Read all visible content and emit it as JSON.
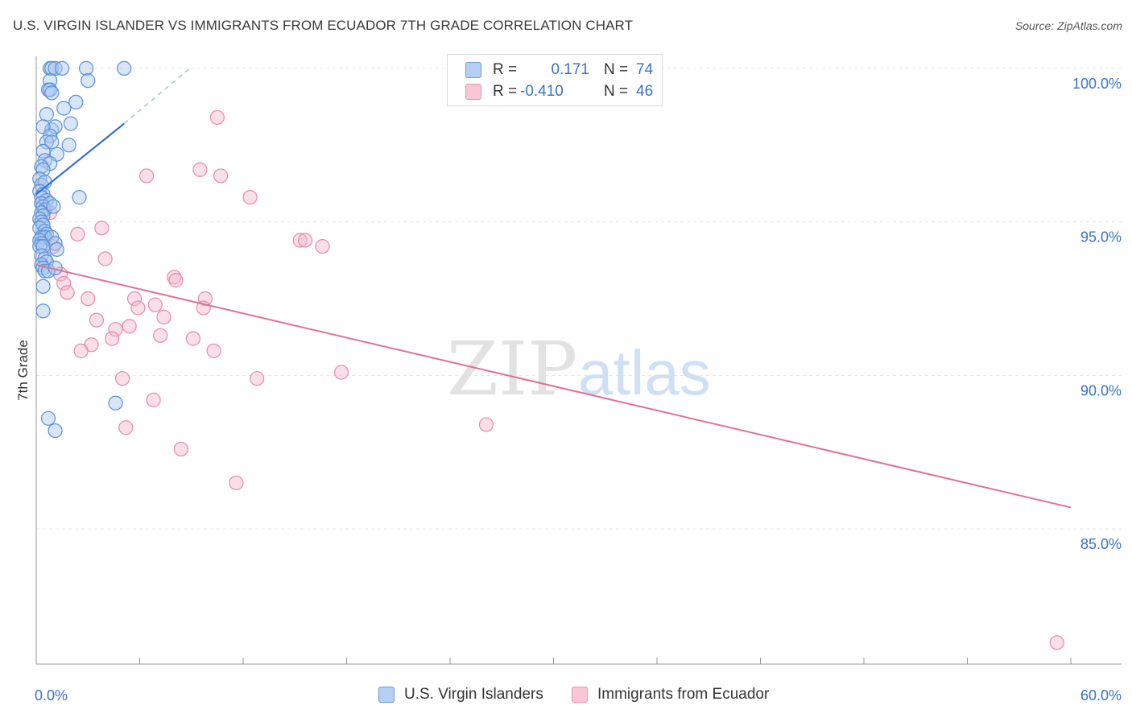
{
  "title": "U.S. VIRGIN ISLANDER VS IMMIGRANTS FROM ECUADOR 7TH GRADE CORRELATION CHART",
  "source": "Source: ZipAtlas.com",
  "watermark": {
    "zip": "ZIP",
    "atlas": "atlas"
  },
  "colors": {
    "blue_fill": "#a8c8f0",
    "blue_stroke": "#5b8fd6",
    "blue_line": "#2f6fd0",
    "pink_fill": "#f5b8cc",
    "pink_stroke": "#e68aa8",
    "pink_line": "#e0709a",
    "tick_text": "#3b73c4",
    "grid": "#e4e4e4"
  },
  "legend": {
    "rows": [
      {
        "r_label": "R =",
        "r_value": "0.171",
        "n_label": "N =",
        "n_value": "74"
      },
      {
        "r_label": "R =",
        "r_value": "-0.410",
        "n_label": "N =",
        "n_value": "46"
      }
    ]
  },
  "bottom_legend": {
    "series1": "U.S. Virgin Islanders",
    "series2": "Immigrants from Ecuador"
  },
  "chart_data": {
    "type": "scatter",
    "title": "U.S. VIRGIN ISLANDER VS IMMIGRANTS FROM ECUADOR 7TH GRADE CORRELATION CHART",
    "xlabel": "",
    "ylabel": "7th Grade",
    "xlim": [
      0,
      60
    ],
    "ylim": [
      80.6,
      100.6
    ],
    "x_tick_labels": [
      {
        "value": 0,
        "label": "0.0%"
      },
      {
        "value": 60,
        "label": "60.0%"
      }
    ],
    "x_minor_ticks": [
      6,
      12,
      18,
      24,
      30,
      36,
      42,
      48,
      54,
      60
    ],
    "y_ticks": [
      {
        "value": 100,
        "label": "100.0%"
      },
      {
        "value": 95,
        "label": "95.0%"
      },
      {
        "value": 90,
        "label": "90.0%"
      },
      {
        "value": 85,
        "label": "85.0%"
      }
    ],
    "series": [
      {
        "name": "U.S. Virgin Islanders",
        "color": "#a8c8f0",
        "trend": {
          "x": [
            0,
            5.1
          ],
          "y": [
            95.9,
            98.2
          ]
        },
        "trend_dashed": {
          "x": [
            5.1,
            8.9
          ],
          "y": [
            98.2,
            100.0
          ]
        },
        "points": [
          [
            0.8,
            100.0
          ],
          [
            0.9,
            100.0
          ],
          [
            1.1,
            100.0
          ],
          [
            1.5,
            100.0
          ],
          [
            2.9,
            100.0
          ],
          [
            5.1,
            100.0
          ],
          [
            0.8,
            99.6
          ],
          [
            3.0,
            99.6
          ],
          [
            0.7,
            99.3
          ],
          [
            0.8,
            99.3
          ],
          [
            0.9,
            99.2
          ],
          [
            2.3,
            98.9
          ],
          [
            1.6,
            98.7
          ],
          [
            0.6,
            98.5
          ],
          [
            2.0,
            98.2
          ],
          [
            0.9,
            98.0
          ],
          [
            1.1,
            98.1
          ],
          [
            0.4,
            98.1
          ],
          [
            0.8,
            97.8
          ],
          [
            0.6,
            97.6
          ],
          [
            0.9,
            97.6
          ],
          [
            1.9,
            97.5
          ],
          [
            0.4,
            97.3
          ],
          [
            1.2,
            97.2
          ],
          [
            0.5,
            97.0
          ],
          [
            0.8,
            96.9
          ],
          [
            0.3,
            96.8
          ],
          [
            0.4,
            96.7
          ],
          [
            0.2,
            96.4
          ],
          [
            0.3,
            96.2
          ],
          [
            0.5,
            96.3
          ],
          [
            0.2,
            96.0
          ],
          [
            0.4,
            95.9
          ],
          [
            0.3,
            95.8
          ],
          [
            0.6,
            95.7
          ],
          [
            2.5,
            95.8
          ],
          [
            0.3,
            95.6
          ],
          [
            0.4,
            95.5
          ],
          [
            0.5,
            95.4
          ],
          [
            0.8,
            95.6
          ],
          [
            1.0,
            95.5
          ],
          [
            0.3,
            95.3
          ],
          [
            0.4,
            95.2
          ],
          [
            0.2,
            95.1
          ],
          [
            0.3,
            95.0
          ],
          [
            0.4,
            94.9
          ],
          [
            0.2,
            94.8
          ],
          [
            0.5,
            94.7
          ],
          [
            0.6,
            94.6
          ],
          [
            0.3,
            94.5
          ],
          [
            0.5,
            94.5
          ],
          [
            0.9,
            94.5
          ],
          [
            0.2,
            94.4
          ],
          [
            0.3,
            94.3
          ],
          [
            1.1,
            94.3
          ],
          [
            0.2,
            94.2
          ],
          [
            0.4,
            94.2
          ],
          [
            1.2,
            94.1
          ],
          [
            0.3,
            93.9
          ],
          [
            0.5,
            93.8
          ],
          [
            0.6,
            93.7
          ],
          [
            0.3,
            93.6
          ],
          [
            0.4,
            93.5
          ],
          [
            0.5,
            93.4
          ],
          [
            0.7,
            93.4
          ],
          [
            1.1,
            93.5
          ],
          [
            0.4,
            92.9
          ],
          [
            0.4,
            92.1
          ],
          [
            4.6,
            89.1
          ],
          [
            0.7,
            88.6
          ],
          [
            1.1,
            88.2
          ]
        ]
      },
      {
        "name": "Immigrants from Ecuador",
        "color": "#f5b8cc",
        "trend": {
          "x": [
            0,
            60
          ],
          "y": [
            93.6,
            85.7
          ]
        },
        "points": [
          [
            10.5,
            98.4
          ],
          [
            9.5,
            96.7
          ],
          [
            10.7,
            96.5
          ],
          [
            6.4,
            96.5
          ],
          [
            12.4,
            95.8
          ],
          [
            0.8,
            95.3
          ],
          [
            3.8,
            94.8
          ],
          [
            2.4,
            94.6
          ],
          [
            15.3,
            94.4
          ],
          [
            15.6,
            94.4
          ],
          [
            16.6,
            94.2
          ],
          [
            1.0,
            94.2
          ],
          [
            4.0,
            93.8
          ],
          [
            1.4,
            93.3
          ],
          [
            8.0,
            93.2
          ],
          [
            8.1,
            93.1
          ],
          [
            1.6,
            93.0
          ],
          [
            1.8,
            92.7
          ],
          [
            3.0,
            92.5
          ],
          [
            5.7,
            92.5
          ],
          [
            9.8,
            92.5
          ],
          [
            6.9,
            92.3
          ],
          [
            5.9,
            92.2
          ],
          [
            9.7,
            92.2
          ],
          [
            7.4,
            91.9
          ],
          [
            3.5,
            91.8
          ],
          [
            5.4,
            91.6
          ],
          [
            4.6,
            91.5
          ],
          [
            7.2,
            91.3
          ],
          [
            4.4,
            91.2
          ],
          [
            9.1,
            91.2
          ],
          [
            3.2,
            91.0
          ],
          [
            2.6,
            90.8
          ],
          [
            10.3,
            90.8
          ],
          [
            17.7,
            90.1
          ],
          [
            12.8,
            89.9
          ],
          [
            5.0,
            89.9
          ],
          [
            6.8,
            89.2
          ],
          [
            26.1,
            88.4
          ],
          [
            5.2,
            88.3
          ],
          [
            8.4,
            87.6
          ],
          [
            11.6,
            86.5
          ],
          [
            59.2,
            81.3
          ]
        ]
      }
    ]
  }
}
